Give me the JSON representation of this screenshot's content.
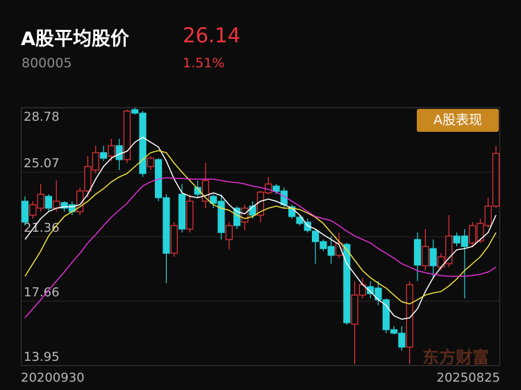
{
  "header": {
    "title": "A股平均股价",
    "code": "800005",
    "price": "26.14",
    "change": "1.51%"
  },
  "badge": "A股表现",
  "watermark": "东方财富",
  "chart_data": {
    "type": "candlestick",
    "categories": [
      "20200930",
      null,
      null,
      null,
      null,
      null,
      null,
      null,
      null,
      null,
      null,
      null,
      null,
      null,
      null,
      null,
      null,
      null,
      null,
      null,
      null,
      null,
      null,
      null,
      null,
      null,
      null,
      null,
      null,
      null,
      null,
      null,
      null,
      null,
      null,
      null,
      null,
      null,
      null,
      null,
      null,
      null,
      null,
      null,
      null,
      null,
      null,
      null,
      null,
      null,
      null,
      null,
      null,
      null,
      null,
      null,
      null,
      null,
      null,
      null,
      "20250825"
    ],
    "open": [
      23.4,
      22.6,
      23.0,
      23.68,
      23.0,
      23.32,
      23.2,
      22.8,
      23.99,
      25.19,
      26.19,
      25.99,
      26.59,
      25.79,
      28.66,
      28.46,
      25.39,
      25.79,
      23.6,
      20.41,
      23.8,
      21.8,
      24.19,
      23.4,
      23.68,
      23.4,
      21.2,
      23.0,
      22.2,
      23.12,
      22.6,
      23.88,
      24.27,
      23.99,
      23.08,
      22.48,
      22.2,
      21.68,
      21.08,
      20.8,
      20.29,
      20.92,
      16.34,
      18.01,
      18.49,
      18.41,
      17.74,
      16.02,
      15.82,
      15.02,
      21.2,
      19.69,
      20.68,
      19.61,
      19.81,
      21.4,
      21.4,
      21.0,
      21.12,
      22.0,
      23.12
    ],
    "high": [
      23.68,
      23.4,
      24.39,
      23.8,
      24.59,
      23.4,
      23.4,
      24.19,
      25.99,
      26.59,
      26.59,
      26.99,
      26.99,
      28.66,
      28.78,
      28.58,
      25.99,
      25.87,
      23.8,
      22.2,
      24.39,
      23.8,
      24.59,
      25.59,
      23.8,
      23.8,
      22.2,
      23.12,
      23.2,
      23.4,
      23.99,
      24.79,
      24.39,
      24.19,
      23.2,
      22.6,
      22.4,
      21.8,
      21.2,
      21.4,
      21.6,
      21.0,
      18.81,
      19.01,
      18.81,
      18.81,
      17.82,
      16.22,
      16.22,
      18.81,
      21.6,
      21.8,
      21.2,
      20.41,
      22.6,
      21.6,
      21.8,
      22.2,
      22.4,
      23.6,
      26.59
    ],
    "low": [
      22.0,
      22.4,
      22.8,
      22.8,
      22.8,
      22.8,
      22.6,
      22.6,
      23.6,
      24.99,
      25.71,
      25.71,
      25.19,
      25.59,
      28.38,
      24.79,
      25.19,
      23.4,
      18.69,
      20.21,
      21.6,
      21.6,
      23.6,
      23.0,
      23.0,
      21.2,
      20.61,
      21.8,
      21.72,
      22.4,
      22.2,
      23.8,
      23.8,
      23.0,
      22.4,
      22.0,
      21.6,
      19.81,
      20.53,
      19.81,
      20.13,
      16.3,
      14.03,
      17.82,
      17.82,
      17.42,
      15.82,
      15.74,
      14.82,
      14.03,
      18.81,
      19.41,
      19.01,
      19.41,
      19.61,
      20.8,
      17.82,
      20.8,
      21.0,
      21.88,
      23.0
    ],
    "close": [
      22.2,
      23.2,
      23.8,
      23.0,
      23.4,
      23.0,
      22.8,
      23.99,
      25.39,
      26.19,
      25.87,
      26.59,
      25.79,
      28.58,
      28.46,
      24.99,
      25.87,
      23.6,
      20.41,
      22.0,
      21.8,
      23.4,
      23.8,
      24.59,
      23.28,
      21.6,
      22.0,
      22.0,
      23.0,
      22.6,
      23.92,
      24.39,
      23.96,
      23.2,
      22.52,
      22.12,
      21.72,
      21.08,
      20.68,
      20.29,
      21.0,
      16.42,
      18.01,
      18.61,
      18.09,
      17.74,
      16.02,
      15.82,
      15.02,
      18.61,
      19.73,
      20.8,
      19.69,
      20.21,
      21.4,
      21.0,
      20.8,
      22.0,
      22.12,
      23.12,
      26.14
    ],
    "up_color": "#f0353b",
    "down_color": "#27d3da",
    "lines": [
      {
        "color": "#ffffff",
        "values": [
          21.2,
          21.8,
          22.4,
          22.8,
          23.0,
          23.08,
          23.08,
          23.2,
          23.8,
          24.67,
          25.39,
          25.87,
          26.11,
          26.27,
          26.79,
          27.07,
          26.79,
          26.51,
          25.71,
          24.67,
          23.88,
          23.68,
          23.6,
          23.72,
          23.88,
          23.72,
          23.2,
          22.8,
          22.68,
          23.08,
          23.4,
          23.52,
          23.4,
          23.2,
          23.0,
          22.6,
          22.0,
          21.8,
          21.48,
          21.2,
          20.92,
          19.81,
          19.21,
          18.61,
          18.21,
          17.74,
          17.42,
          16.82,
          16.62,
          16.7,
          17.22,
          18.21,
          19.01,
          19.61,
          20.13,
          20.61,
          20.68,
          20.8,
          21.2,
          21.6,
          22.6
        ]
      },
      {
        "color": "#f2e33a",
        "values": [
          19.09,
          19.81,
          20.53,
          21.4,
          22.0,
          22.52,
          22.8,
          23.08,
          23.4,
          23.8,
          24.12,
          24.51,
          24.79,
          24.99,
          25.39,
          25.79,
          26.19,
          26.31,
          26.19,
          25.59,
          25.07,
          24.59,
          24.12,
          23.6,
          23.2,
          23.0,
          22.88,
          22.6,
          22.4,
          22.52,
          22.8,
          23.0,
          23.12,
          23.0,
          23.0,
          22.92,
          22.72,
          22.48,
          22.12,
          21.6,
          21.08,
          20.61,
          20.01,
          19.41,
          19.01,
          18.69,
          18.41,
          18.01,
          17.62,
          17.5,
          17.74,
          18.01,
          18.13,
          18.21,
          18.53,
          18.93,
          19.41,
          19.81,
          20.21,
          20.8,
          21.6
        ]
      },
      {
        "color": "#e22fd6",
        "values": [
          16.7,
          17.22,
          17.74,
          18.29,
          18.81,
          19.33,
          19.89,
          20.41,
          21.0,
          21.48,
          22.0,
          22.48,
          22.88,
          23.28,
          23.8,
          24.27,
          24.51,
          24.67,
          24.75,
          24.71,
          24.71,
          24.67,
          24.67,
          24.67,
          24.67,
          24.59,
          24.51,
          24.47,
          24.39,
          24.27,
          24.19,
          24.08,
          23.92,
          23.68,
          23.4,
          23.12,
          22.8,
          22.52,
          22.4,
          22.28,
          22.0,
          21.68,
          21.4,
          21.2,
          21.0,
          20.68,
          20.41,
          20.13,
          19.81,
          19.61,
          19.41,
          19.29,
          19.21,
          19.13,
          19.09,
          19.09,
          19.09,
          19.13,
          19.21,
          19.33,
          19.61
        ]
      }
    ],
    "ylim": [
      13.95,
      28.78
    ],
    "yticks": [
      28.78,
      25.07,
      21.36,
      17.66,
      13.95
    ],
    "grid": true
  }
}
